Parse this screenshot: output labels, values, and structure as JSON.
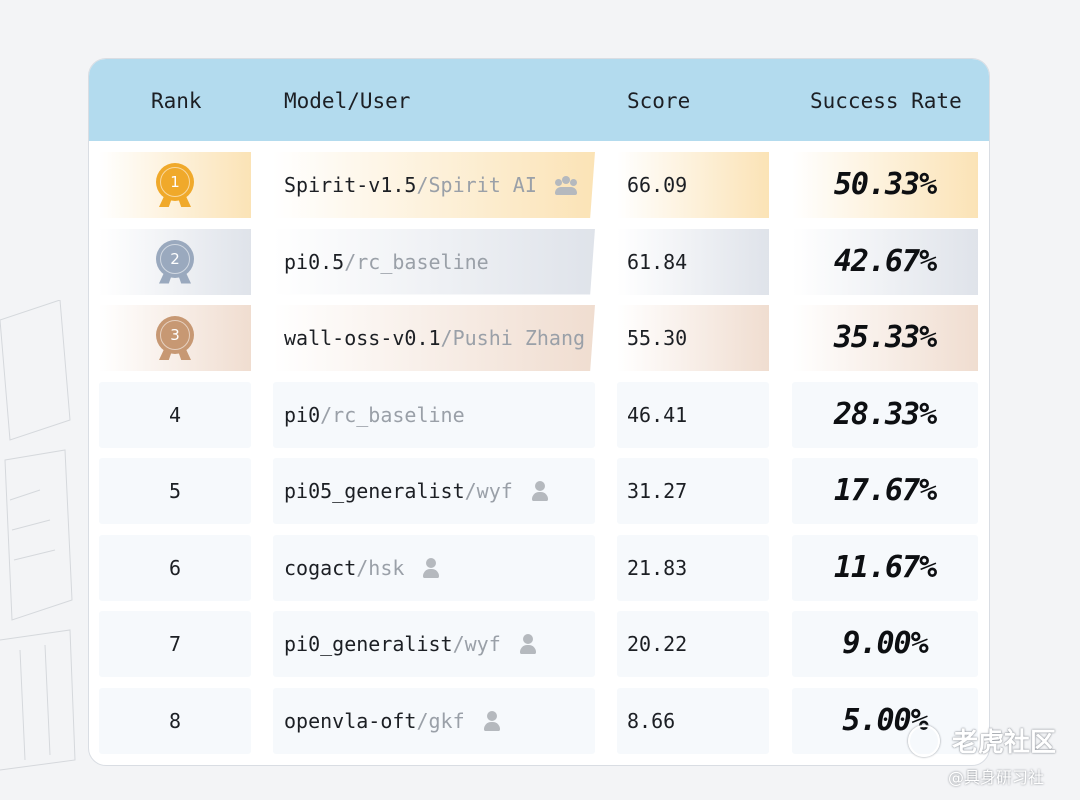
{
  "header": {
    "rank": "Rank",
    "model_user": "Model/User",
    "score": "Score",
    "success_rate": "Success Rate"
  },
  "rows": [
    {
      "rank": "1",
      "model": "Spirit-v1.5",
      "user": "Spirit AI",
      "user_icon": "team-icon",
      "score": "66.09",
      "success_rate": "50.33%",
      "medal": "gold"
    },
    {
      "rank": "2",
      "model": "pi0.5",
      "user": "rc_baseline",
      "user_icon": "",
      "score": "61.84",
      "success_rate": "42.67%",
      "medal": "silver"
    },
    {
      "rank": "3",
      "model": "wall-oss-v0.1",
      "user": "Pushi Zhang",
      "user_icon": "",
      "score": "55.30",
      "success_rate": "35.33%",
      "medal": "bronze"
    },
    {
      "rank": "4",
      "model": "pi0",
      "user": "rc_baseline",
      "user_icon": "",
      "score": "46.41",
      "success_rate": "28.33%"
    },
    {
      "rank": "5",
      "model": "pi05_generalist",
      "user": "wyf",
      "user_icon": "person-icon",
      "score": "31.27",
      "success_rate": "17.67%"
    },
    {
      "rank": "6",
      "model": "cogact",
      "user": "hsk",
      "user_icon": "person-icon",
      "score": "21.83",
      "success_rate": "11.67%"
    },
    {
      "rank": "7",
      "model": "pi0_generalist",
      "user": "wyf",
      "user_icon": "person-icon",
      "score": "20.22",
      "success_rate": "9.00%"
    },
    {
      "rank": "8",
      "model": "openvla-oft",
      "user": "gkf",
      "user_icon": "person-icon",
      "score": "8.66",
      "success_rate": "5.00%"
    }
  ],
  "separator": "/",
  "colors": {
    "header_bg": "#b3dbee",
    "gold": "#f0a92a",
    "silver": "#9aa9be",
    "bronze": "#c79873",
    "gold_row": "#fbe3b6",
    "silver_row": "#dfe3ea",
    "bronze_row": "#f0ddd0",
    "plain_row": "#f6f9fc"
  },
  "watermark": {
    "logo_text": "老虎社区",
    "sub_text": "@具身研习社"
  }
}
